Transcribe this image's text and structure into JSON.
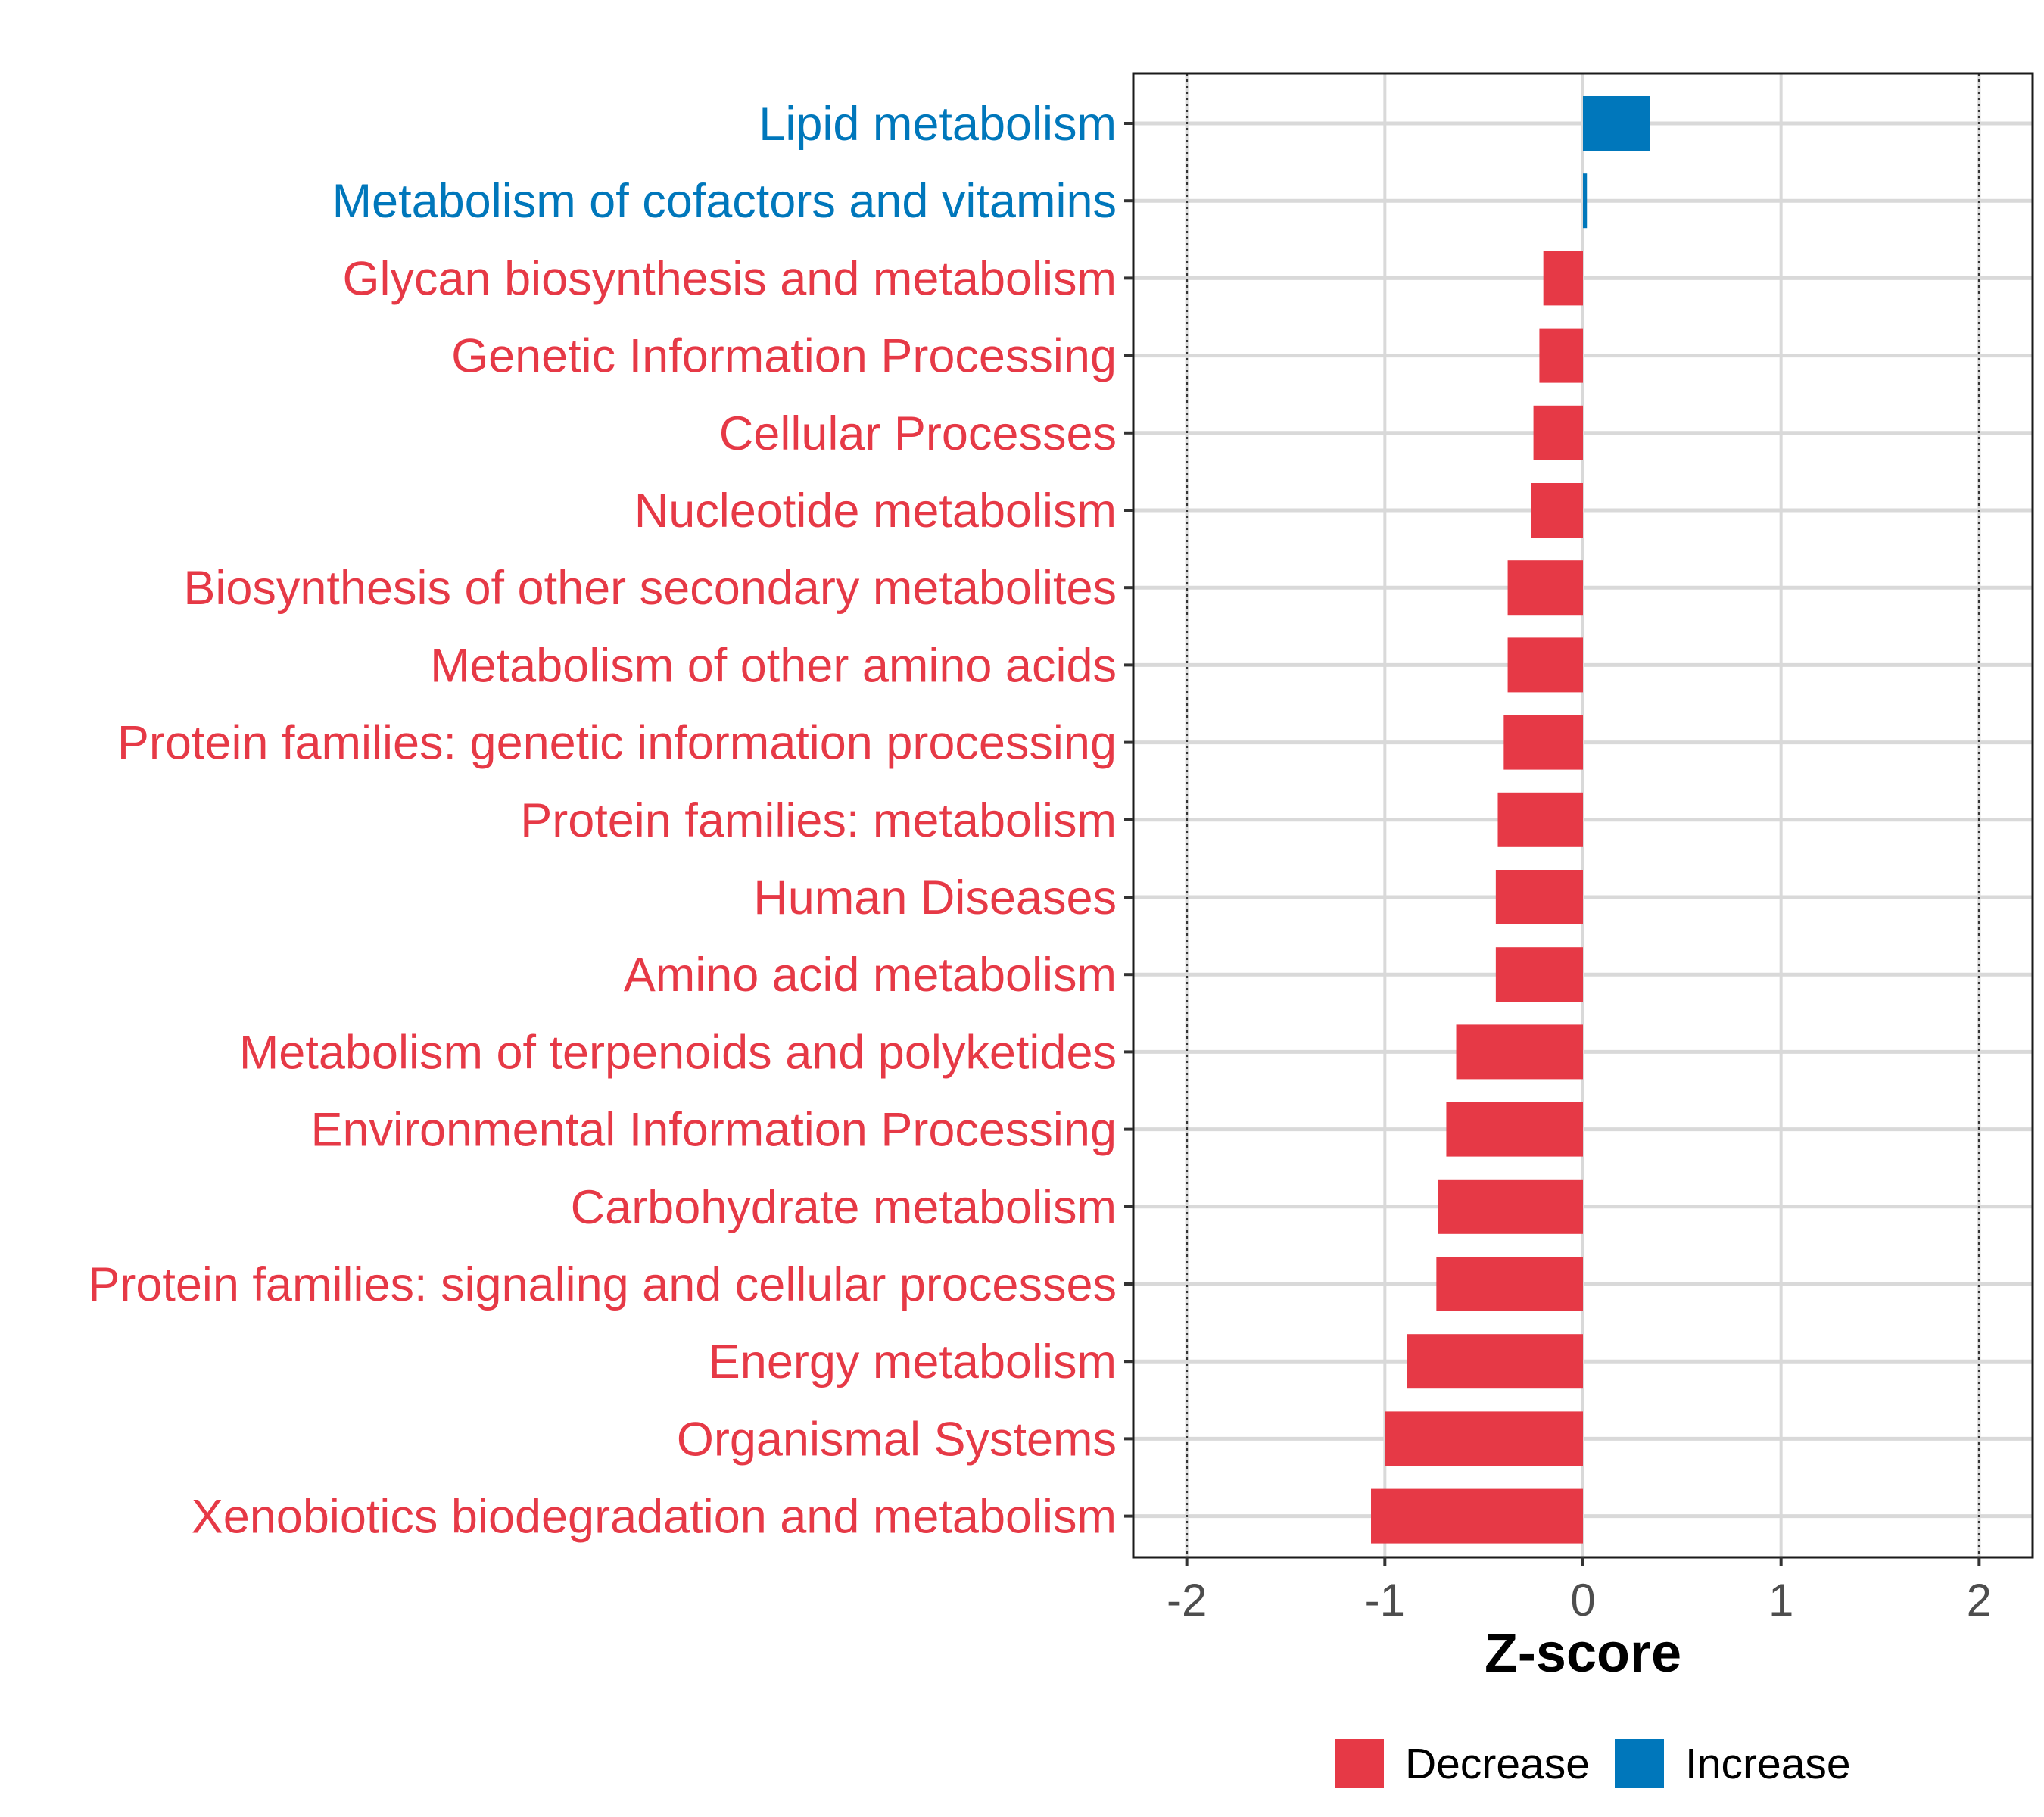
{
  "chart_data": {
    "type": "bar",
    "orientation": "horizontal",
    "title": "",
    "xlabel": "Z-score",
    "ylabel": "",
    "xlim": [
      -2.27,
      2.27
    ],
    "xticks": [
      -2,
      -1,
      0,
      1,
      2
    ],
    "xtick_labels": [
      "-2",
      "-1",
      "0",
      "1",
      "2"
    ],
    "reference_lines": [
      -2,
      2
    ],
    "grid": true,
    "legend_position": "bottom",
    "legend": [
      {
        "label": "Decrease",
        "color": "#E63946"
      },
      {
        "label": "Increase",
        "color": "#0077BB"
      }
    ],
    "categories": [
      "Lipid metabolism",
      "Metabolism of cofactors and vitamins",
      "Glycan biosynthesis and metabolism",
      "Genetic Information Processing",
      "Cellular Processes",
      "Nucleotide metabolism",
      "Biosynthesis of other secondary metabolites",
      "Metabolism of other amino acids",
      "Protein families: genetic information processing",
      "Protein families: metabolism",
      "Human Diseases",
      "Amino acid metabolism",
      "Metabolism of terpenoids and polyketides",
      "Environmental Information Processing",
      "Carbohydrate metabolism",
      "Protein families: signaling and cellular processes",
      "Energy metabolism",
      "Organismal Systems",
      "Xenobiotics biodegradation and metabolism"
    ],
    "values": [
      0.34,
      0.02,
      -0.2,
      -0.22,
      -0.25,
      -0.26,
      -0.38,
      -0.38,
      -0.4,
      -0.43,
      -0.44,
      -0.44,
      -0.64,
      -0.69,
      -0.73,
      -0.74,
      -0.89,
      -1.0,
      -1.07
    ],
    "groups": [
      "Increase",
      "Increase",
      "Decrease",
      "Decrease",
      "Decrease",
      "Decrease",
      "Decrease",
      "Decrease",
      "Decrease",
      "Decrease",
      "Decrease",
      "Decrease",
      "Decrease",
      "Decrease",
      "Decrease",
      "Decrease",
      "Decrease",
      "Decrease",
      "Decrease"
    ]
  }
}
